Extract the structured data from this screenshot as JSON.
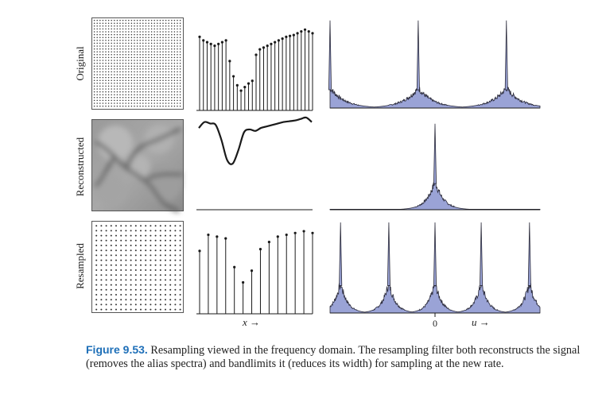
{
  "rows": [
    {
      "label": "Original"
    },
    {
      "label": "Reconstructed"
    },
    {
      "label": "Resampled"
    }
  ],
  "axes": {
    "x_label": "x",
    "u_label": "u",
    "zero_label": "0",
    "arrow": "→"
  },
  "caption": {
    "figure_number": "Figure 9.53.",
    "text": "Resampling viewed in the frequency domain. The resampling filter both reconstructs the signal (removes the alias spectra) and bandlimits it (reduces its width) for sampling at the new rate."
  },
  "chart_data": [
    {
      "type": "stem",
      "panel": "original-signal",
      "values": [
        0.82,
        0.78,
        0.76,
        0.74,
        0.72,
        0.74,
        0.76,
        0.78,
        0.55,
        0.38,
        0.28,
        0.22,
        0.26,
        0.3,
        0.33,
        0.62,
        0.68,
        0.7,
        0.72,
        0.74,
        0.76,
        0.78,
        0.8,
        0.82,
        0.83,
        0.84,
        0.86,
        0.88,
        0.9,
        0.88,
        0.86
      ],
      "ylim": [
        0,
        1
      ]
    },
    {
      "type": "stem",
      "panel": "resampled-signal",
      "values": [
        0.7,
        0.88,
        0.86,
        0.84,
        0.52,
        0.35,
        0.48,
        0.72,
        0.8,
        0.86,
        0.88,
        0.9,
        0.92,
        0.9
      ],
      "ylim": [
        0,
        1
      ]
    },
    {
      "type": "line",
      "panel": "reconstructed-signal",
      "x": [
        0,
        0.05,
        0.1,
        0.15,
        0.2,
        0.25,
        0.3,
        0.35,
        0.4,
        0.45,
        0.5,
        0.55,
        0.6,
        0.65,
        0.7,
        0.75,
        0.8,
        0.85,
        0.9,
        0.95,
        1.0
      ],
      "values": [
        0.78,
        0.86,
        0.84,
        0.82,
        0.62,
        0.35,
        0.3,
        0.48,
        0.72,
        0.76,
        0.74,
        0.78,
        0.8,
        0.82,
        0.84,
        0.86,
        0.87,
        0.88,
        0.9,
        0.92,
        0.86
      ],
      "ylim": [
        0,
        1
      ]
    },
    {
      "type": "area",
      "panel": "original-spectrum",
      "peaks": [
        0.0,
        0.42,
        0.84
      ],
      "peak_height": 0.95,
      "lobe_height": 0.22,
      "lobe_width": 0.14
    },
    {
      "type": "area",
      "panel": "reconstructed-spectrum",
      "peaks": [
        0.5
      ],
      "peak_height": 0.95,
      "lobe_height": 0.32,
      "lobe_width": 0.08
    },
    {
      "type": "area",
      "panel": "resampled-spectrum",
      "peaks": [
        0.05,
        0.28,
        0.5,
        0.72,
        0.95
      ],
      "peak_height": 0.95,
      "lobe_height": 0.32,
      "lobe_width": 0.065
    }
  ],
  "style": {
    "spectrum_fill": "#9aa3d6",
    "ink": "#1a1a1a"
  }
}
